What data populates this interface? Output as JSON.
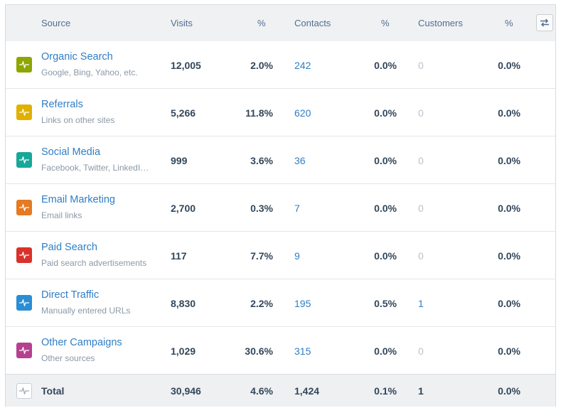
{
  "headers": {
    "source": "Source",
    "visits": "Visits",
    "visits_pct": "%",
    "contacts": "Contacts",
    "contacts_pct": "%",
    "customers": "Customers",
    "customers_pct": "%"
  },
  "toggle_icon": "swap-icon",
  "rows": [
    {
      "title": "Organic Search",
      "subtitle": "Google, Bing, Yahoo, etc.",
      "visits": "12,005",
      "visits_pct": "2.0%",
      "contacts": "242",
      "contacts_pct": "0.0%",
      "customers": "0",
      "customers_pct": "0.0%",
      "color": "#8ea600"
    },
    {
      "title": "Referrals",
      "subtitle": "Links on other sites",
      "visits": "5,266",
      "visits_pct": "11.8%",
      "contacts": "620",
      "contacts_pct": "0.0%",
      "customers": "0",
      "customers_pct": "0.0%",
      "color": "#e0b100"
    },
    {
      "title": "Social Media",
      "subtitle": "Facebook, Twitter, LinkedI…",
      "visits": "999",
      "visits_pct": "3.6%",
      "contacts": "36",
      "contacts_pct": "0.0%",
      "customers": "0",
      "customers_pct": "0.0%",
      "color": "#17a899"
    },
    {
      "title": "Email Marketing",
      "subtitle": "Email links",
      "visits": "2,700",
      "visits_pct": "0.3%",
      "contacts": "7",
      "contacts_pct": "0.0%",
      "customers": "0",
      "customers_pct": "0.0%",
      "color": "#e57a22"
    },
    {
      "title": "Paid Search",
      "subtitle": "Paid search advertisements",
      "visits": "117",
      "visits_pct": "7.7%",
      "contacts": "9",
      "contacts_pct": "0.0%",
      "customers": "0",
      "customers_pct": "0.0%",
      "color": "#d9322a"
    },
    {
      "title": "Direct Traffic",
      "subtitle": "Manually entered URLs",
      "visits": "8,830",
      "visits_pct": "2.2%",
      "contacts": "195",
      "contacts_pct": "0.5%",
      "customers": "1",
      "customers_pct": "0.0%",
      "color": "#2a8ed4"
    },
    {
      "title": "Other Campaigns",
      "subtitle": "Other sources",
      "visits": "1,029",
      "visits_pct": "30.6%",
      "contacts": "315",
      "contacts_pct": "0.0%",
      "customers": "0",
      "customers_pct": "0.0%",
      "color": "#b6408f"
    }
  ],
  "total": {
    "title": "Total",
    "visits": "30,946",
    "visits_pct": "4.6%",
    "contacts": "1,424",
    "contacts_pct": "0.1%",
    "customers": "1",
    "customers_pct": "0.0%"
  }
}
